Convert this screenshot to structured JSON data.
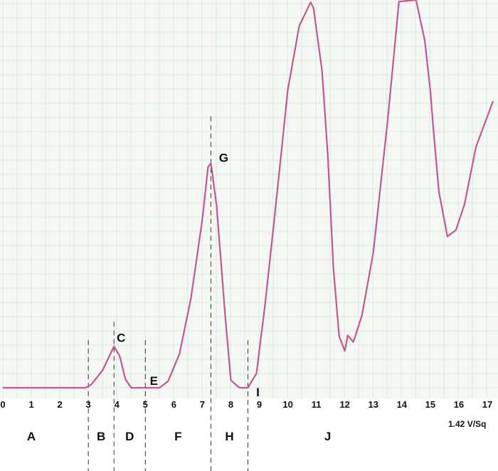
{
  "chart_data": {
    "type": "line",
    "title": "",
    "xlabel": "",
    "ylabel": "",
    "xlim": [
      0,
      17.2
    ],
    "ylim": [
      0,
      100
    ],
    "grid": true,
    "x_ticks": [
      "0",
      "1",
      "2",
      "3",
      "4",
      "5",
      "6",
      "7",
      "8",
      "9",
      "10",
      "11",
      "12",
      "13",
      "14",
      "15",
      "16",
      "17"
    ],
    "scale_note": "1.42 V/Sq",
    "colors": {
      "trace": "#c8558f",
      "grid": "#cfe3e8",
      "background": "#f4f7f2",
      "text": "#111111"
    },
    "series": [
      {
        "x": [
          0,
          2.9,
          3.1,
          3.5,
          3.9,
          4.1,
          4.3,
          4.5,
          5.0,
          5.5,
          5.8,
          6.2,
          6.6,
          7.0,
          7.2,
          7.3,
          7.5,
          7.8,
          8.0,
          8.3,
          8.6,
          8.9,
          9.2,
          9.6,
          10.0,
          10.4,
          10.8,
          10.9,
          11.2,
          11.4,
          11.6,
          11.8,
          12.0,
          12.1,
          12.3,
          12.6,
          13.0,
          13.5,
          13.9,
          14.5,
          14.8,
          15.0,
          15.1,
          15.3,
          15.6,
          15.9,
          16.2,
          16.6,
          17.2
        ],
        "y": [
          0,
          0,
          0.8,
          4.5,
          10.7,
          8.2,
          2.2,
          0,
          0,
          0,
          1.7,
          8.8,
          23.1,
          43.4,
          56.9,
          57.9,
          47.1,
          18.6,
          1.9,
          0,
          0,
          3.7,
          21.3,
          48.7,
          76.9,
          93.3,
          99.4,
          98.0,
          81.7,
          60.1,
          30.7,
          13.3,
          9.5,
          13.5,
          11.8,
          18.6,
          35.0,
          68.8,
          99.6,
          100,
          89.7,
          76.6,
          67.3,
          50.6,
          39.0,
          40.7,
          47.3,
          62.1,
          73.9
        ]
      }
    ],
    "dividers": [
      {
        "x": 3.0,
        "y_top": 12.3
      },
      {
        "x": 3.9,
        "y_top": 17.0
      },
      {
        "x": 5.0,
        "y_top": 12.3
      },
      {
        "x": 7.3,
        "y_top": 70.0
      },
      {
        "x": 8.6,
        "y_top": 12.3
      }
    ],
    "point_labels": [
      {
        "text": "C",
        "x": 3.9,
        "y": 10.7
      },
      {
        "text": "E",
        "x": 5.0,
        "y": 0
      },
      {
        "text": "G",
        "x": 7.3,
        "y": 57.9
      },
      {
        "text": "I",
        "x": 8.6,
        "y": 0
      }
    ],
    "regions": [
      {
        "label": "A",
        "x": 1.0
      },
      {
        "label": "B",
        "x": 3.45
      },
      {
        "label": "D",
        "x": 4.45
      },
      {
        "label": "F",
        "x": 6.15
      },
      {
        "label": "H",
        "x": 7.95
      },
      {
        "label": "J",
        "x": 11.4
      }
    ]
  }
}
